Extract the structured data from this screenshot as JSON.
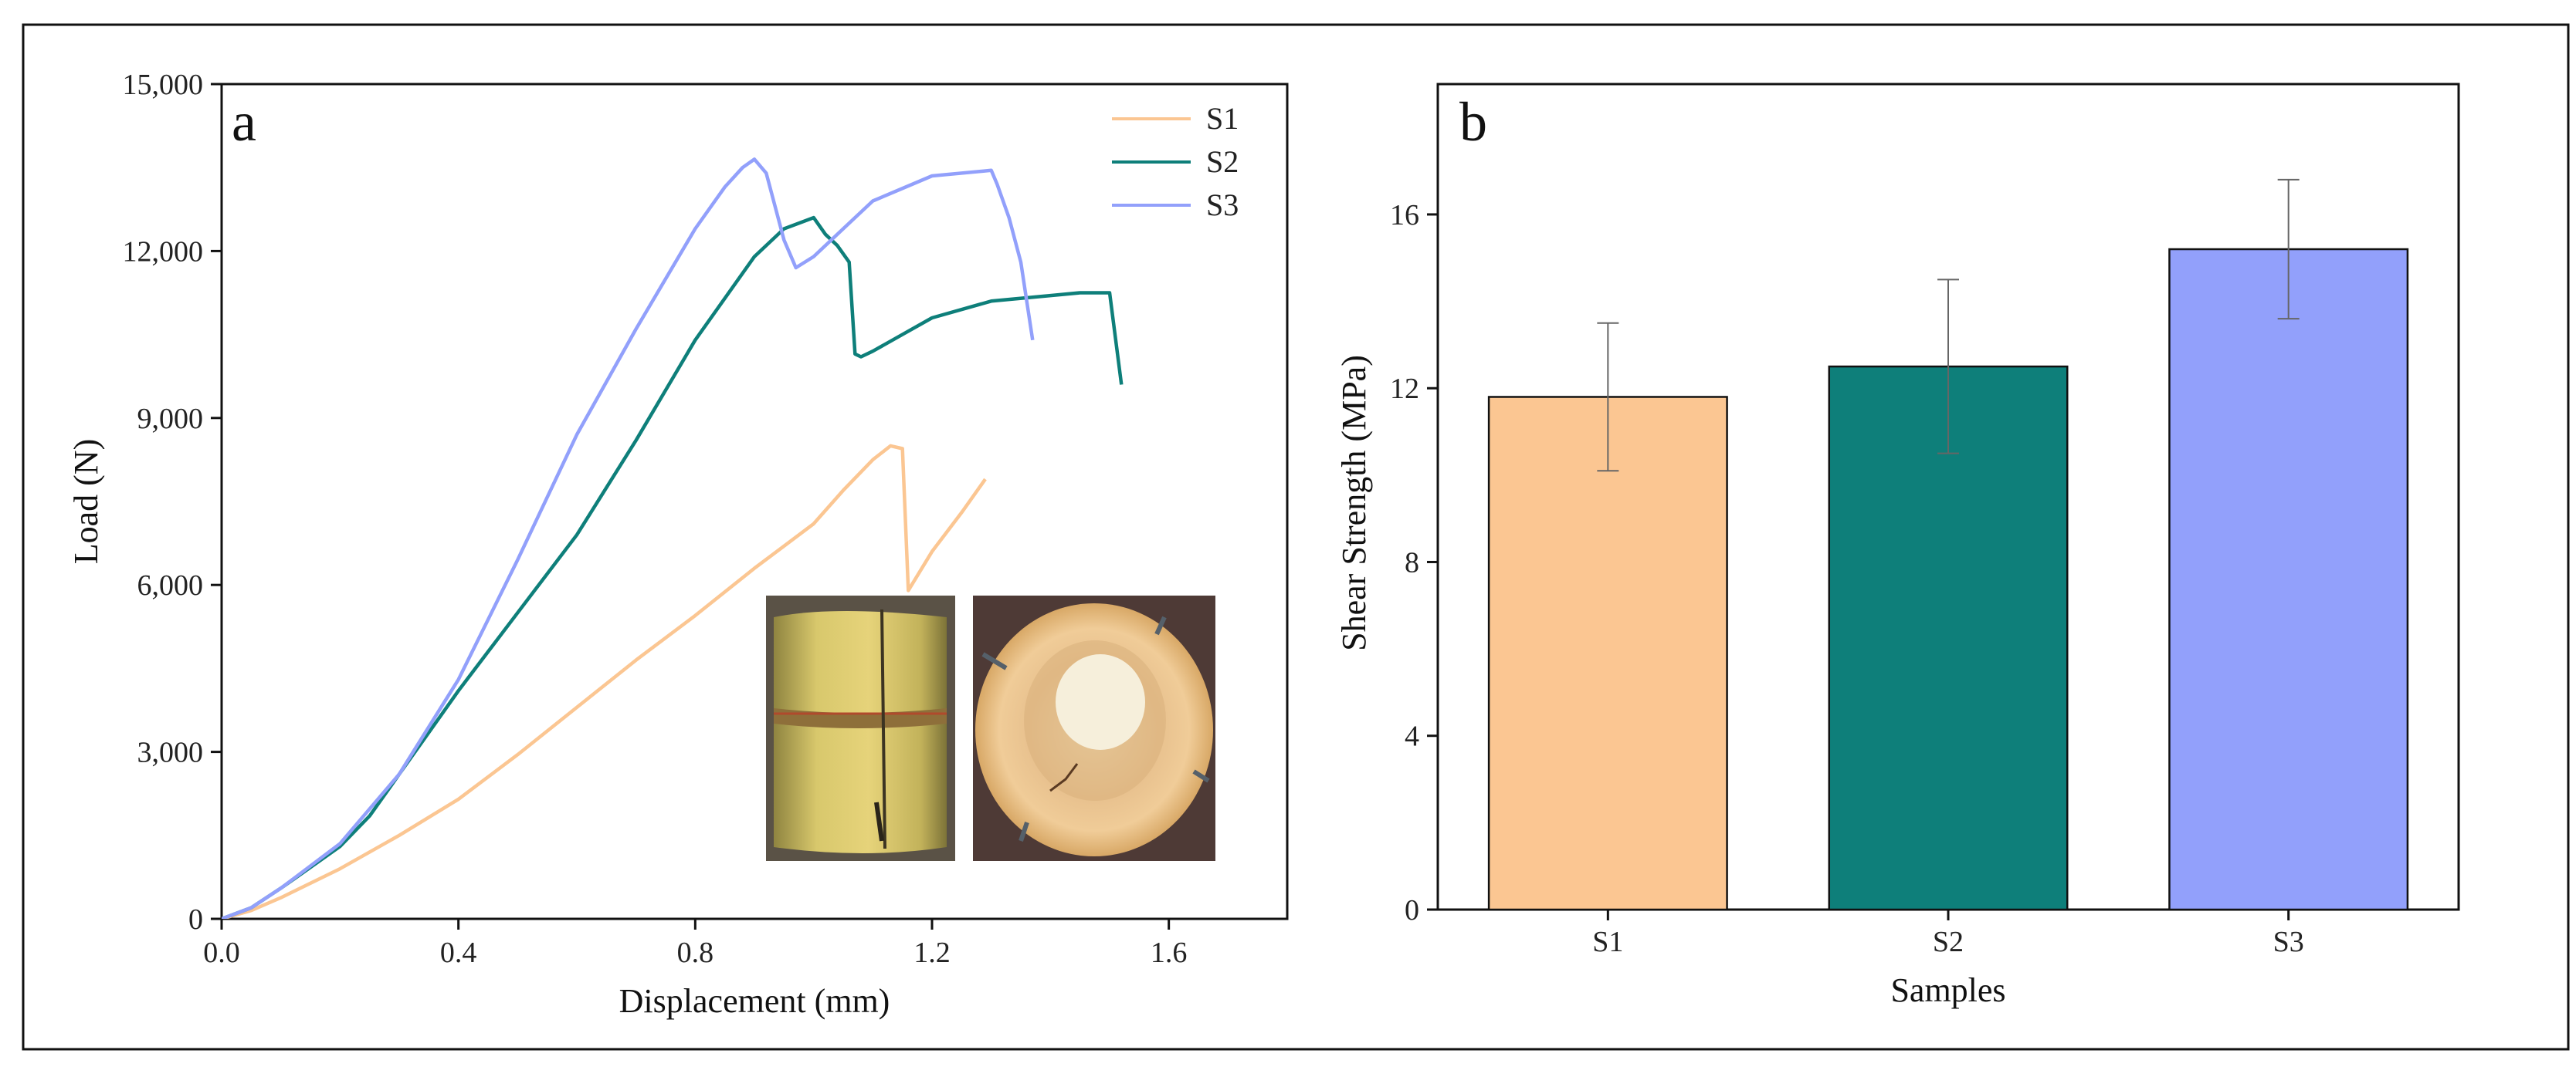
{
  "colors": {
    "S1": "#fbc692",
    "S2": "#0e7f7a",
    "S3": "#92a0fb",
    "frame": "#111111"
  },
  "chart_data": [
    {
      "type": "line",
      "panel_label": "a",
      "title": "",
      "xlabel": "Displacement (mm)",
      "ylabel": "Load (N)",
      "xlim": [
        0,
        1.8
      ],
      "ylim": [
        0,
        15000
      ],
      "xticks": [
        0.0,
        0.4,
        0.8,
        1.2,
        1.6
      ],
      "xtick_labels": [
        "0.0",
        "0.4",
        "0.8",
        "1.2",
        "1.6"
      ],
      "yticks": [
        0,
        3000,
        6000,
        9000,
        12000,
        15000
      ],
      "ytick_labels": [
        "0",
        "3,000",
        "6,000",
        "9,000",
        "12,000",
        "15,000"
      ],
      "legend": [
        "S1",
        "S2",
        "S3"
      ],
      "legend_position": "top-right",
      "inset_photos": [
        "bamboo-joint-side-view",
        "bamboo-joint-cross-section"
      ],
      "series": [
        {
          "name": "S1",
          "x": [
            0,
            0.05,
            0.1,
            0.2,
            0.3,
            0.4,
            0.5,
            0.6,
            0.7,
            0.8,
            0.9,
            1.0,
            1.05,
            1.1,
            1.13,
            1.15,
            1.16,
            1.2,
            1.25,
            1.29
          ],
          "y": [
            0,
            150,
            380,
            900,
            1500,
            2150,
            2950,
            3800,
            4650,
            5450,
            6300,
            7100,
            7700,
            8250,
            8500,
            8450,
            5900,
            6600,
            7300,
            7900
          ]
        },
        {
          "name": "S2",
          "x": [
            0,
            0.05,
            0.1,
            0.2,
            0.25,
            0.3,
            0.4,
            0.5,
            0.6,
            0.7,
            0.8,
            0.9,
            0.95,
            1.0,
            1.02,
            1.04,
            1.06,
            1.07,
            1.08,
            1.1,
            1.15,
            1.2,
            1.3,
            1.4,
            1.45,
            1.5,
            1.52
          ],
          "y": [
            0,
            200,
            550,
            1300,
            1850,
            2600,
            4100,
            5500,
            6900,
            8600,
            10400,
            11900,
            12400,
            12600,
            12300,
            12100,
            11800,
            10150,
            10100,
            10200,
            10500,
            10800,
            11100,
            11200,
            11250,
            11250,
            9600
          ]
        },
        {
          "name": "S3",
          "x": [
            0,
            0.05,
            0.1,
            0.2,
            0.3,
            0.4,
            0.5,
            0.6,
            0.7,
            0.8,
            0.85,
            0.88,
            0.9,
            0.92,
            0.95,
            0.97,
            1.0,
            1.05,
            1.1,
            1.2,
            1.3,
            1.31,
            1.33,
            1.35,
            1.37
          ],
          "y": [
            0,
            200,
            550,
            1350,
            2600,
            4300,
            6450,
            8700,
            10600,
            12400,
            13150,
            13500,
            13650,
            13400,
            12200,
            11700,
            11900,
            12400,
            12900,
            13350,
            13450,
            13200,
            12600,
            11800,
            10400
          ]
        }
      ]
    },
    {
      "type": "bar",
      "panel_label": "b",
      "title": "",
      "xlabel": "Samples",
      "ylabel": "Shear Strength (MPa)",
      "ylim": [
        0,
        19
      ],
      "yticks": [
        0,
        4,
        8,
        12,
        16
      ],
      "ytick_labels": [
        "0",
        "4",
        "8",
        "12",
        "16"
      ],
      "categories": [
        "S1",
        "S2",
        "S3"
      ],
      "values": [
        11.8,
        12.5,
        15.2
      ],
      "error": [
        1.7,
        2.0,
        1.6
      ]
    }
  ]
}
